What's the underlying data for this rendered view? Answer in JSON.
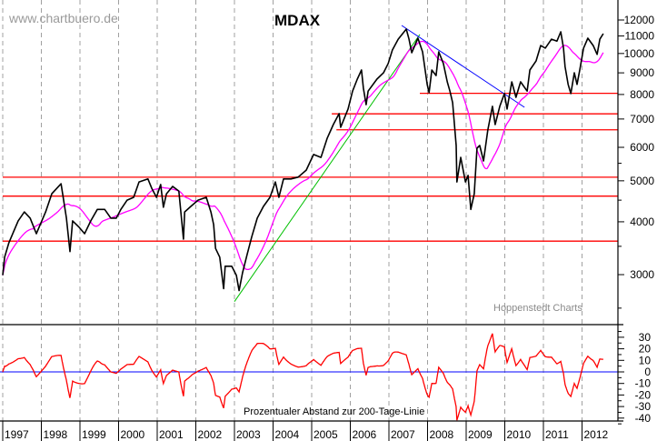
{
  "chart_data": {
    "type": "line",
    "title": "MDAX",
    "watermark": "www.chartbuero.de",
    "source": "Hoppenstedt Charts",
    "indicator_label": "Prozentualer Abstand zur 200-Tage-Linie",
    "y_scale": "log",
    "ylim": [
      2300,
      12600
    ],
    "xlim": [
      1997,
      2012.8
    ],
    "grid": "vertical dashed at year boundaries",
    "x_ticks": [
      "1997",
      "1998",
      "1999",
      "2000",
      "2001",
      "2002",
      "2003",
      "2004",
      "2005",
      "2006",
      "2007",
      "2008",
      "2009",
      "2010",
      "2011",
      "2012"
    ],
    "y_ticks": [
      3000,
      4000,
      5000,
      6000,
      7000,
      8000,
      9000,
      10000,
      11000,
      12000
    ],
    "indicator_ticks": [
      30,
      20,
      10,
      0,
      -10,
      -20,
      -30,
      -40
    ],
    "indicator_ylim": [
      -47,
      38
    ],
    "colors": {
      "price": "#000000",
      "sma": "#ff00ff",
      "indicator": "#ff0000",
      "support": "#ff0000",
      "uptrend": "#00c000",
      "downtrend": "#0000ff",
      "zero_line": "#0000ff",
      "grid": "#a0a0a0"
    },
    "series": [
      {
        "key": "price",
        "points": [
          [
            1997.0,
            2990
          ],
          [
            1997.05,
            3300
          ],
          [
            1997.16,
            3570
          ],
          [
            1997.4,
            4020
          ],
          [
            1997.56,
            4220
          ],
          [
            1997.71,
            4080
          ],
          [
            1997.87,
            3750
          ],
          [
            1998.11,
            4220
          ],
          [
            1998.27,
            4660
          ],
          [
            1998.51,
            4920
          ],
          [
            1998.65,
            4080
          ],
          [
            1998.74,
            3400
          ],
          [
            1998.81,
            4020
          ],
          [
            1998.98,
            3880
          ],
          [
            1999.12,
            3750
          ],
          [
            1999.28,
            4020
          ],
          [
            1999.45,
            4280
          ],
          [
            1999.64,
            4280
          ],
          [
            1999.8,
            4080
          ],
          [
            1999.94,
            4080
          ],
          [
            2000.06,
            4280
          ],
          [
            2000.22,
            4500
          ],
          [
            2000.39,
            4570
          ],
          [
            2000.53,
            4970
          ],
          [
            2000.76,
            5050
          ],
          [
            2000.86,
            4800
          ],
          [
            2000.98,
            4570
          ],
          [
            2001.09,
            4900
          ],
          [
            2001.16,
            4330
          ],
          [
            2001.24,
            4660
          ],
          [
            2001.4,
            4850
          ],
          [
            2001.56,
            4730
          ],
          [
            2001.68,
            3640
          ],
          [
            2001.71,
            4220
          ],
          [
            2001.87,
            4350
          ],
          [
            2002.06,
            4500
          ],
          [
            2002.27,
            4570
          ],
          [
            2002.39,
            4220
          ],
          [
            2002.46,
            3940
          ],
          [
            2002.51,
            3460
          ],
          [
            2002.62,
            3300
          ],
          [
            2002.72,
            2780
          ],
          [
            2002.76,
            3140
          ],
          [
            2002.93,
            3140
          ],
          [
            2003.05,
            2990
          ],
          [
            2003.12,
            2750
          ],
          [
            2003.21,
            3030
          ],
          [
            2003.33,
            3350
          ],
          [
            2003.45,
            3690
          ],
          [
            2003.59,
            4080
          ],
          [
            2003.75,
            4350
          ],
          [
            2003.92,
            4570
          ],
          [
            2004.06,
            4970
          ],
          [
            2004.15,
            4570
          ],
          [
            2004.27,
            5050
          ],
          [
            2004.46,
            5050
          ],
          [
            2004.65,
            5100
          ],
          [
            2004.86,
            5300
          ],
          [
            2005.05,
            5770
          ],
          [
            2005.24,
            5680
          ],
          [
            2005.4,
            6300
          ],
          [
            2005.56,
            6790
          ],
          [
            2005.71,
            7210
          ],
          [
            2005.75,
            6690
          ],
          [
            2005.94,
            7390
          ],
          [
            2006.06,
            8150
          ],
          [
            2006.18,
            8700
          ],
          [
            2006.29,
            9140
          ],
          [
            2006.34,
            8280
          ],
          [
            2006.41,
            7570
          ],
          [
            2006.46,
            8150
          ],
          [
            2006.69,
            8700
          ],
          [
            2006.86,
            9000
          ],
          [
            2006.98,
            9470
          ],
          [
            2007.09,
            10190
          ],
          [
            2007.24,
            10810
          ],
          [
            2007.45,
            11420
          ],
          [
            2007.52,
            10810
          ],
          [
            2007.59,
            10040
          ],
          [
            2007.75,
            10870
          ],
          [
            2007.87,
            10090
          ],
          [
            2007.99,
            8450
          ],
          [
            2008.04,
            8080
          ],
          [
            2008.11,
            9140
          ],
          [
            2008.22,
            8870
          ],
          [
            2008.29,
            10090
          ],
          [
            2008.41,
            9470
          ],
          [
            2008.51,
            8570
          ],
          [
            2008.58,
            8150
          ],
          [
            2008.65,
            7650
          ],
          [
            2008.74,
            6060
          ],
          [
            2008.76,
            4970
          ],
          [
            2008.86,
            5680
          ],
          [
            2008.98,
            4970
          ],
          [
            2009.05,
            5150
          ],
          [
            2009.12,
            4280
          ],
          [
            2009.21,
            4660
          ],
          [
            2009.28,
            5970
          ],
          [
            2009.35,
            6060
          ],
          [
            2009.45,
            5570
          ],
          [
            2009.56,
            6590
          ],
          [
            2009.68,
            7500
          ],
          [
            2009.75,
            6790
          ],
          [
            2009.87,
            7500
          ],
          [
            2009.99,
            8040
          ],
          [
            2010.06,
            7390
          ],
          [
            2010.18,
            8570
          ],
          [
            2010.29,
            7880
          ],
          [
            2010.41,
            8570
          ],
          [
            2010.58,
            8150
          ],
          [
            2010.65,
            9140
          ],
          [
            2010.81,
            9600
          ],
          [
            2010.93,
            10440
          ],
          [
            2011.05,
            10300
          ],
          [
            2011.21,
            10810
          ],
          [
            2011.35,
            10700
          ],
          [
            2011.45,
            11250
          ],
          [
            2011.52,
            10300
          ],
          [
            2011.56,
            9320
          ],
          [
            2011.64,
            8450
          ],
          [
            2011.71,
            8040
          ],
          [
            2011.8,
            9000
          ],
          [
            2011.87,
            8450
          ],
          [
            2011.94,
            9140
          ],
          [
            2012.04,
            10300
          ],
          [
            2012.15,
            10870
          ],
          [
            2012.29,
            10440
          ],
          [
            2012.39,
            9950
          ],
          [
            2012.46,
            10810
          ],
          [
            2012.55,
            11140
          ]
        ]
      }
    ],
    "support_lines": [
      {
        "value": 5100,
        "from": 1997
      },
      {
        "value": 4600,
        "from": 1997
      },
      {
        "value": 3600,
        "from": 1997
      },
      {
        "value": 8050,
        "from": 2007.8
      },
      {
        "value": 7200,
        "from": 2005.52
      },
      {
        "value": 6600,
        "from": 2005.64
      }
    ],
    "trend_lines": [
      {
        "key": "uptrend",
        "from": [
          2003.0,
          2590
        ],
        "to": [
          2007.8,
          11090
        ]
      },
      {
        "key": "downtrend",
        "from": [
          2007.33,
          11650
        ],
        "to": [
          2010.51,
          7460
        ]
      }
    ]
  }
}
